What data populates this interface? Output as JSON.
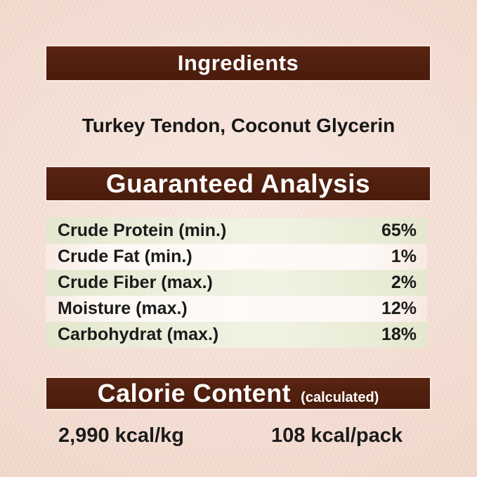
{
  "ingredients": {
    "header": "Ingredients",
    "items": "Turkey Tendon, Coconut Glycerin"
  },
  "guaranteed_analysis": {
    "header": "Guaranteed Analysis",
    "rows": [
      {
        "label": "Crude Protein (min.)",
        "value": "65%"
      },
      {
        "label": "Crude Fat (min.)",
        "value": "1%"
      },
      {
        "label": "Crude Fiber (max.)",
        "value": "2%"
      },
      {
        "label": "Moisture (max.)",
        "value": "12%"
      },
      {
        "label": "Carbohydrat (max.)",
        "value": "18%"
      }
    ]
  },
  "calorie_content": {
    "header": "Calorie Content",
    "note": "(calculated)",
    "per_kg": "2,990 kcal/kg",
    "per_pack": "108 kcal/pack"
  },
  "colors": {
    "header_bar_brown": "#52200f",
    "background_pink": "#f2d9cd",
    "row_stripe_green": "#e9ebd5",
    "row_stripe_light": "#fdfaf7",
    "header_text": "#ffffff",
    "body_text": "#1b1b1b"
  }
}
